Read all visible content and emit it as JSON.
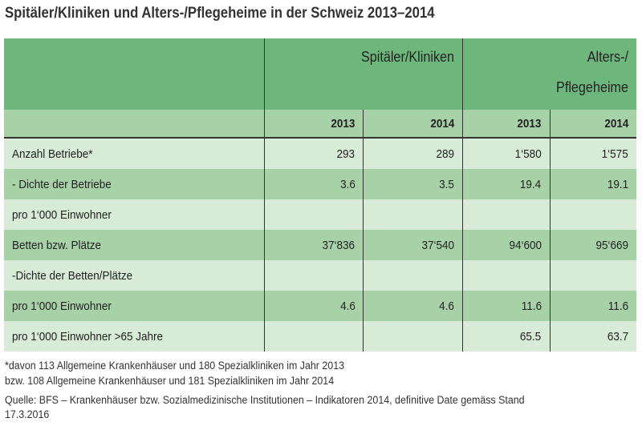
{
  "title": "Spitäler/Kliniken und Alters-/Pflegeheime in der Schweiz 2013–2014",
  "groups": [
    "Spitäler/Kliniken",
    "Alters-/",
    "Pflegeheime"
  ],
  "years": [
    "2013",
    "2014",
    "2013",
    "2014"
  ],
  "rows": [
    {
      "label": "Anzahl Betriebe*",
      "values": [
        "293",
        "289",
        "1‘580",
        "1‘575"
      ]
    },
    {
      "label": "- Dichte der Betriebe",
      "values": [
        "3.6",
        "3.5",
        "19.4",
        "19.1"
      ]
    },
    {
      "label": "pro 1‘000 Einwohner",
      "values": [
        "",
        "",
        "",
        ""
      ]
    },
    {
      "label": "Betten bzw. Plätze",
      "values": [
        "37‘836",
        "37‘540",
        "94‘600",
        "95‘669"
      ]
    },
    {
      "label": "-Dichte der Betten/Plätze",
      "values": [
        "",
        "",
        "",
        ""
      ]
    },
    {
      "label": "pro 1‘000 Einwohner",
      "values": [
        "4.6",
        "4.6",
        "11.6",
        "11.6"
      ]
    },
    {
      "label": "pro 1‘000 Einwohner >65 Jahre",
      "values": [
        "",
        "",
        "65.5",
        "63.7"
      ]
    }
  ],
  "footnotes": [
    "*davon 113 Allgemeine Krankenhäuser und 180 Spezialkliniken im Jahr 2013",
    "bzw. 108 Allgemeine Krankenhäuser und 181 Spezialkliniken im Jahr 2014",
    "Quelle: BFS – Krankenhäuser bzw. Sozialmedizinische Institutionen – Indikatoren 2014, definitive Date gemäss Stand",
    "17.3.2016"
  ]
}
